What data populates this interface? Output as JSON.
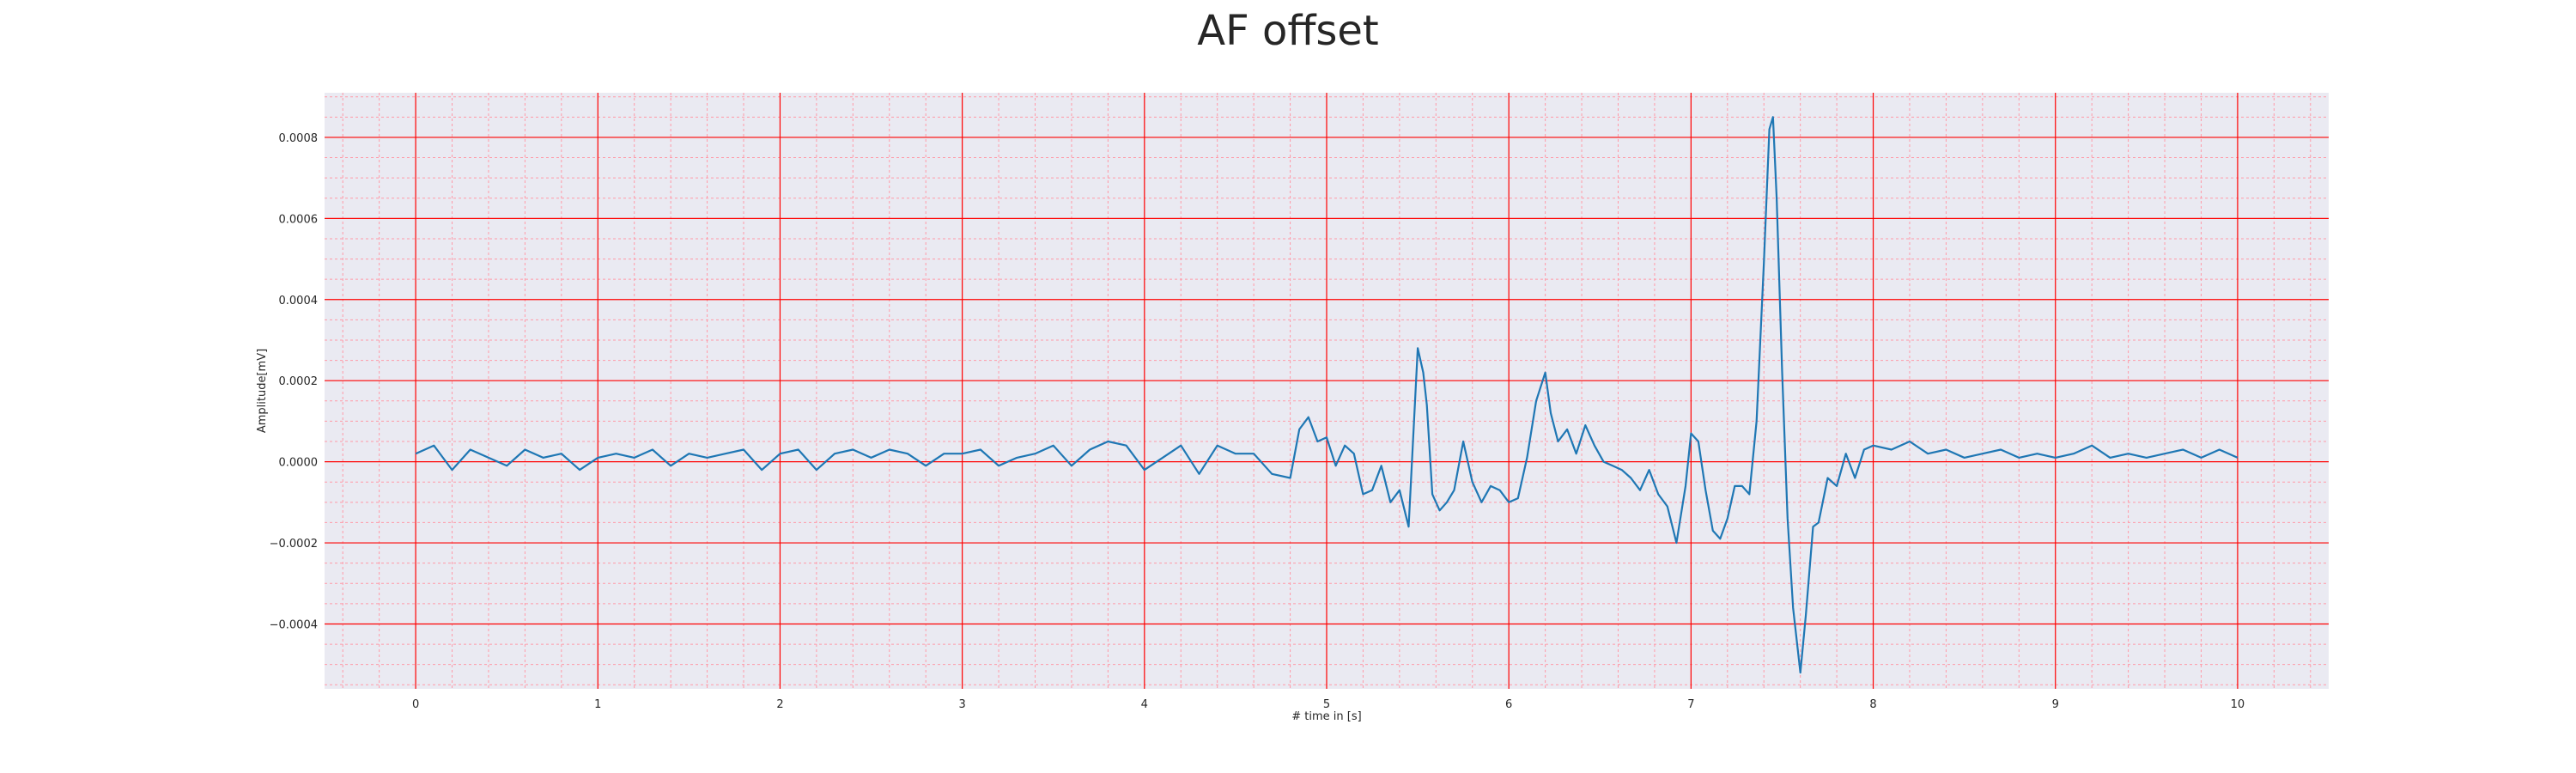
{
  "chart_data": {
    "type": "line",
    "title": "AF offset",
    "xlabel": "# time in [s]",
    "ylabel": "Amplitude[mV]",
    "xlim": [
      -0.5,
      10.5
    ],
    "ylim": [
      -0.00056,
      0.00091
    ],
    "x_ticks": [
      0,
      1,
      2,
      3,
      4,
      5,
      6,
      7,
      8,
      9,
      10
    ],
    "x_tick_labels": [
      "0",
      "1",
      "2",
      "3",
      "4",
      "5",
      "6",
      "7",
      "8",
      "9",
      "10"
    ],
    "y_ticks": [
      -0.0004,
      -0.0002,
      0.0,
      0.0002,
      0.0004,
      0.0006,
      0.0008
    ],
    "y_tick_labels": [
      "−0.0004",
      "−0.0002",
      "0.0000",
      "0.0002",
      "0.0004",
      "0.0006",
      "0.0008"
    ],
    "grid": true,
    "minor_grid": true,
    "colors": {
      "background": "#eaeaf2",
      "major_grid": "#ff0000",
      "minor_grid": "#ff9aa8",
      "line": "#1f77b4"
    },
    "series": [
      {
        "x": [
          0,
          0.1,
          0.2,
          0.3,
          0.4,
          0.5,
          0.6,
          0.7,
          0.8,
          0.9,
          1.0,
          1.1,
          1.2,
          1.3,
          1.4,
          1.5,
          1.6,
          1.7,
          1.8,
          1.9,
          2.0,
          2.1,
          2.2,
          2.3,
          2.4,
          2.5,
          2.6,
          2.7,
          2.8,
          2.9,
          3.0,
          3.1,
          3.2,
          3.3,
          3.4,
          3.5,
          3.6,
          3.7,
          3.8,
          3.9,
          4.0,
          4.1,
          4.2,
          4.3,
          4.4,
          4.5,
          4.6,
          4.7,
          4.8,
          4.85,
          4.9,
          4.95,
          5.0,
          5.05,
          5.1,
          5.15,
          5.2,
          5.25,
          5.3,
          5.35,
          5.4,
          5.45,
          5.5,
          5.53,
          5.55,
          5.58,
          5.62,
          5.66,
          5.7,
          5.75,
          5.8,
          5.85,
          5.9,
          5.95,
          6.0,
          6.05,
          6.1,
          6.15,
          6.2,
          6.23,
          6.27,
          6.32,
          6.37,
          6.42,
          6.47,
          6.52,
          6.57,
          6.62,
          6.67,
          6.72,
          6.77,
          6.82,
          6.87,
          6.92,
          6.97,
          7.0,
          7.04,
          7.08,
          7.12,
          7.16,
          7.2,
          7.24,
          7.28,
          7.32,
          7.36,
          7.4,
          7.43,
          7.45,
          7.47,
          7.5,
          7.53,
          7.56,
          7.6,
          7.63,
          7.67,
          7.7,
          7.75,
          7.8,
          7.85,
          7.9,
          7.95,
          8.0,
          8.1,
          8.2,
          8.3,
          8.4,
          8.5,
          8.6,
          8.7,
          8.8,
          8.9,
          9.0,
          9.1,
          9.2,
          9.3,
          9.4,
          9.5,
          9.6,
          9.7,
          9.8,
          9.9,
          10.0
        ],
        "values": [
          2e-05,
          4e-05,
          -2e-05,
          3e-05,
          1e-05,
          -1e-05,
          3e-05,
          1e-05,
          2e-05,
          -2e-05,
          1e-05,
          2e-05,
          1e-05,
          3e-05,
          -1e-05,
          2e-05,
          1e-05,
          2e-05,
          3e-05,
          -2e-05,
          2e-05,
          3e-05,
          -2e-05,
          2e-05,
          3e-05,
          1e-05,
          3e-05,
          2e-05,
          -1e-05,
          2e-05,
          2e-05,
          3e-05,
          -1e-05,
          1e-05,
          2e-05,
          4e-05,
          -1e-05,
          3e-05,
          5e-05,
          4e-05,
          -2e-05,
          1e-05,
          4e-05,
          -3e-05,
          4e-05,
          2e-05,
          2e-05,
          -3e-05,
          -4e-05,
          8e-05,
          0.00011,
          5e-05,
          6e-05,
          -1e-05,
          4e-05,
          2e-05,
          -8e-05,
          -7e-05,
          -1e-05,
          -0.0001,
          -7e-05,
          -0.00016,
          0.00028,
          0.00022,
          0.00014,
          -8e-05,
          -0.00012,
          -0.0001,
          -7e-05,
          5e-05,
          -5e-05,
          -0.0001,
          -6e-05,
          -7e-05,
          -0.0001,
          -9e-05,
          1e-05,
          0.00015,
          0.00022,
          0.00012,
          5e-05,
          8e-05,
          2e-05,
          9e-05,
          4e-05,
          0.0,
          -1e-05,
          -2e-05,
          -4e-05,
          -7e-05,
          -2e-05,
          -8e-05,
          -0.00011,
          -0.0002,
          -6e-05,
          7e-05,
          5e-05,
          -7e-05,
          -0.00017,
          -0.00019,
          -0.00014,
          -6e-05,
          -6e-05,
          -8e-05,
          0.0001,
          0.00049,
          0.00082,
          0.00085,
          0.00065,
          0.00022,
          -0.00014,
          -0.00036,
          -0.00052,
          -0.00038,
          -0.00016,
          -0.00015,
          -4e-05,
          -6e-05,
          2e-05,
          -4e-05,
          3e-05,
          4e-05,
          3e-05,
          5e-05,
          2e-05,
          3e-05,
          1e-05,
          2e-05,
          3e-05,
          1e-05,
          2e-05,
          1e-05,
          2e-05,
          4e-05,
          1e-05,
          2e-05,
          1e-05,
          2e-05,
          3e-05,
          1e-05,
          3e-05,
          1e-05
        ]
      }
    ]
  }
}
